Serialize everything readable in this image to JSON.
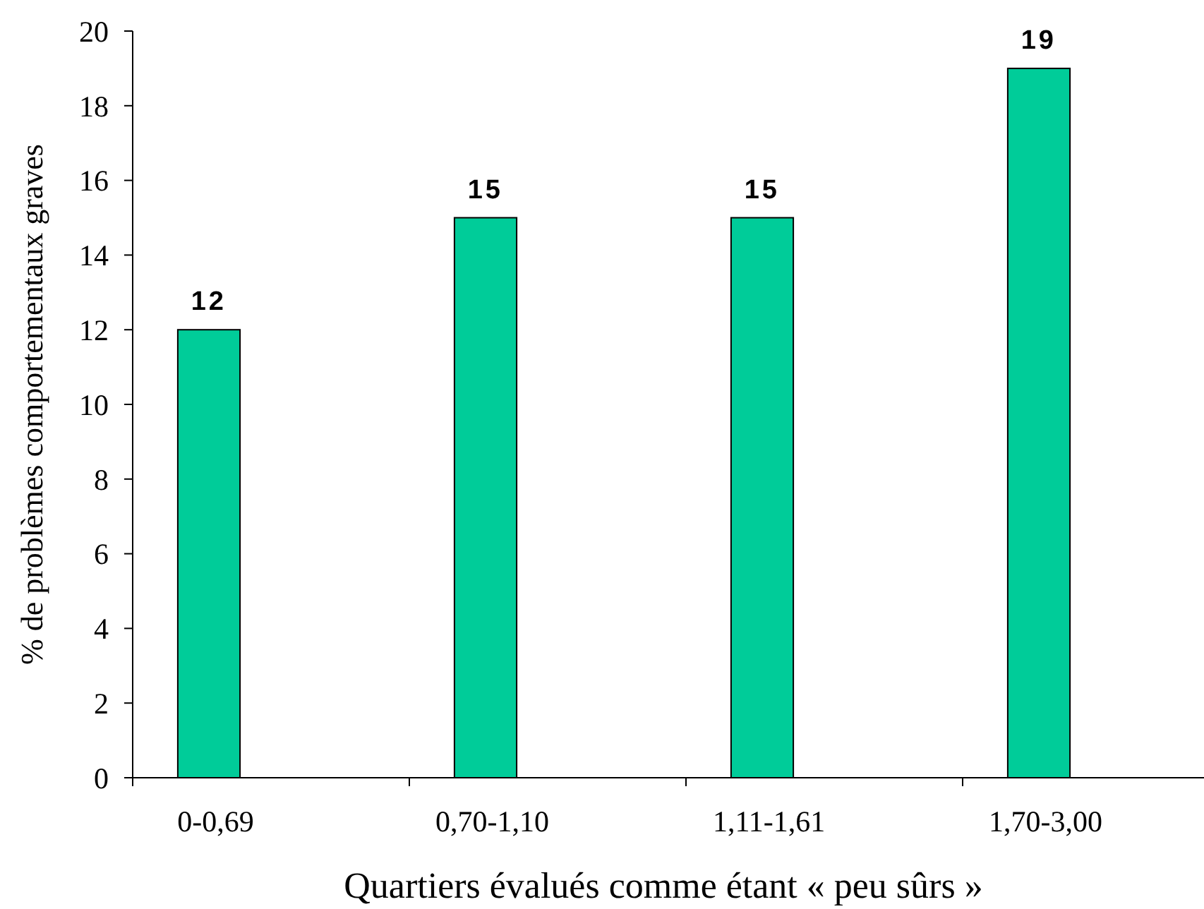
{
  "chart_data": {
    "type": "bar",
    "xlabel": "Quartiers évalués comme étant « peu sûrs »",
    "ylabel": "% de problèmes comportementaux graves",
    "categories": [
      "0-0,69",
      "0,70-1,10",
      "1,11-1,61",
      "1,70-3,00"
    ],
    "values": [
      12,
      15,
      15,
      19
    ],
    "color": "#00cc99",
    "data_labels": true,
    "ylim": [
      0,
      20
    ],
    "yticks": [
      0,
      2,
      4,
      6,
      8,
      10,
      12,
      14,
      16,
      18,
      20
    ]
  }
}
